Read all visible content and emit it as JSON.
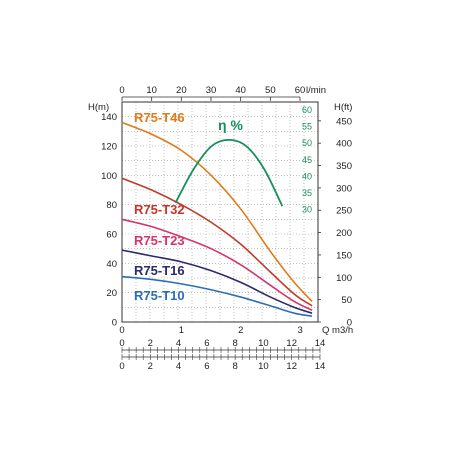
{
  "chart_data": {
    "type": "line",
    "axes": {
      "left": {
        "label": "H(m)",
        "ticks": [
          0,
          20,
          40,
          60,
          80,
          100,
          120,
          140
        ],
        "range": [
          0,
          150
        ]
      },
      "right": {
        "label": "H(ft)",
        "ticks": [
          0,
          50,
          100,
          150,
          200,
          250,
          300,
          350,
          400,
          450
        ]
      },
      "eta": {
        "label": "η %",
        "ticks": [
          30,
          35,
          40,
          45,
          50,
          55,
          60
        ]
      },
      "bottom": {
        "label": "Q m3/h",
        "ticks": [
          0,
          1,
          2,
          3
        ],
        "range": [
          0,
          3.3
        ]
      },
      "top": {
        "label": "l/min",
        "ticks": [
          0,
          10,
          20,
          30,
          40,
          50,
          60
        ]
      },
      "bottom2": {
        "label": "",
        "ticks": [
          0,
          2,
          4,
          6,
          8,
          10,
          12,
          14
        ]
      },
      "bottom3": {
        "label": "",
        "ticks": [
          0,
          2,
          4,
          6,
          8,
          10,
          12,
          14
        ]
      }
    },
    "grid": true,
    "series": [
      {
        "name": "R75-T46",
        "color": "#e07b1a",
        "x": [
          0,
          0.5,
          1.0,
          1.5,
          2.0,
          2.5,
          2.9,
          3.2
        ],
        "y": [
          136,
          128,
          117,
          100,
          77,
          48,
          27,
          14
        ]
      },
      {
        "name": "R75-T32",
        "color": "#c0392b",
        "x": [
          0,
          0.5,
          1.0,
          1.5,
          2.0,
          2.5,
          2.9,
          3.2
        ],
        "y": [
          98,
          90,
          80,
          68,
          53,
          34,
          19,
          11
        ]
      },
      {
        "name": "R75-T23",
        "color": "#d6336c",
        "x": [
          0,
          0.5,
          1.0,
          1.5,
          2.0,
          2.5,
          2.9,
          3.2
        ],
        "y": [
          70,
          65,
          58,
          50,
          39,
          25,
          14,
          8
        ]
      },
      {
        "name": "R75-T16",
        "color": "#2a2a6e",
        "x": [
          0,
          0.5,
          1.0,
          1.5,
          2.0,
          2.5,
          2.9,
          3.2
        ],
        "y": [
          49,
          45,
          41,
          35,
          27,
          17,
          10,
          6
        ]
      },
      {
        "name": "R75-T10",
        "color": "#2c6fb0",
        "x": [
          0,
          0.5,
          1.0,
          1.5,
          2.0,
          2.5,
          2.9,
          3.2
        ],
        "y": [
          31,
          29,
          26,
          22,
          17,
          11,
          6,
          4
        ]
      },
      {
        "name": "η %",
        "color": "#1a8f5c",
        "axis": "eta",
        "x": [
          0.9,
          1.2,
          1.5,
          1.8,
          2.1,
          2.4,
          2.7
        ],
        "y": [
          32,
          42,
          49,
          51,
          49,
          42,
          31
        ]
      }
    ]
  }
}
